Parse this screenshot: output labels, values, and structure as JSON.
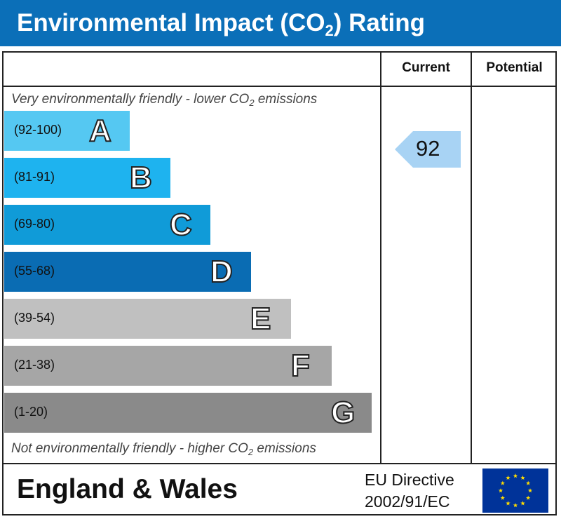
{
  "header": {
    "title_main": "Environmental Impact (CO",
    "title_sub": "2",
    "title_end": ") Rating"
  },
  "columns": {
    "current": "Current",
    "potential": "Potential"
  },
  "notes": {
    "top_main": "Very environmentally friendly - lower CO",
    "top_sub": "2",
    "top_end": " emissions",
    "bottom_main": "Not environmentally friendly - higher CO",
    "bottom_sub": "2",
    "bottom_end": " emissions"
  },
  "footer": {
    "region": "England & Wales",
    "directive_line1": "EU Directive",
    "directive_line2": "2002/91/EC"
  },
  "colors": {
    "header": "#0b6fb8",
    "A": "#55c8f2",
    "B": "#1eb3ef",
    "C": "#109bd8",
    "D": "#0a6cb3",
    "E": "#c0c0c0",
    "F": "#a6a6a6",
    "G": "#8a8a8a",
    "arrow": "#a8d3f4",
    "flag": "#003399",
    "stars": "#ffdd00"
  },
  "chart_data": {
    "type": "bar",
    "bands": [
      {
        "letter": "A",
        "range": "(92-100)",
        "min": 92,
        "max": 100
      },
      {
        "letter": "B",
        "range": "(81-91)",
        "min": 81,
        "max": 91
      },
      {
        "letter": "C",
        "range": "(69-80)",
        "min": 69,
        "max": 80
      },
      {
        "letter": "D",
        "range": "(55-68)",
        "min": 55,
        "max": 68
      },
      {
        "letter": "E",
        "range": "(39-54)",
        "min": 39,
        "max": 54
      },
      {
        "letter": "F",
        "range": "(21-38)",
        "min": 21,
        "max": 38
      },
      {
        "letter": "G",
        "range": "(1-20)",
        "min": 1,
        "max": 20
      }
    ],
    "current_rating": 92,
    "current_band": "A",
    "potential_rating": null
  }
}
